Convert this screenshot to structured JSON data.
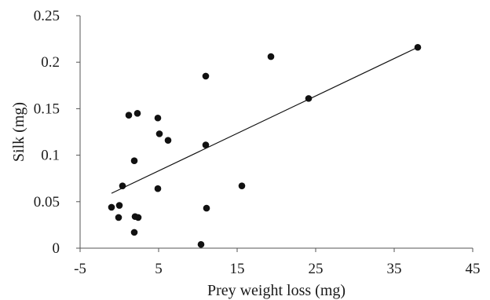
{
  "chart_data": {
    "type": "scatter",
    "title": "",
    "xlabel": "Prey weight loss (mg)",
    "ylabel": "Silk (mg)",
    "xlim": [
      -5,
      45
    ],
    "ylim": [
      0,
      0.25
    ],
    "x_ticks": [
      -5,
      5,
      15,
      25,
      35,
      45
    ],
    "x_tick_labels": [
      "-5",
      "5",
      "15",
      "25",
      "35",
      "45"
    ],
    "y_ticks": [
      0,
      0.05,
      0.1,
      0.15,
      0.2,
      0.25
    ],
    "y_tick_labels": [
      "0",
      "0.05",
      "0.1",
      "0.15",
      "0.2",
      "0.25"
    ],
    "grid": false,
    "legend": "none",
    "series": [
      {
        "points": [
          {
            "x": -1.0,
            "y": 0.044
          },
          {
            "x": 0.0,
            "y": 0.046
          },
          {
            "x": -0.1,
            "y": 0.033
          },
          {
            "x": 0.4,
            "y": 0.067
          },
          {
            "x": 1.2,
            "y": 0.143
          },
          {
            "x": 1.9,
            "y": 0.094
          },
          {
            "x": 2.0,
            "y": 0.034
          },
          {
            "x": 2.4,
            "y": 0.033
          },
          {
            "x": 1.9,
            "y": 0.017
          },
          {
            "x": 2.3,
            "y": 0.145
          },
          {
            "x": 4.9,
            "y": 0.14
          },
          {
            "x": 5.1,
            "y": 0.123
          },
          {
            "x": 4.9,
            "y": 0.064
          },
          {
            "x": 6.2,
            "y": 0.116
          },
          {
            "x": 10.4,
            "y": 0.004
          },
          {
            "x": 11.0,
            "y": 0.185
          },
          {
            "x": 11.0,
            "y": 0.111
          },
          {
            "x": 11.1,
            "y": 0.043
          },
          {
            "x": 15.6,
            "y": 0.067
          },
          {
            "x": 19.3,
            "y": 0.206
          },
          {
            "x": 24.1,
            "y": 0.161
          },
          {
            "x": 38.0,
            "y": 0.216
          }
        ]
      }
    ],
    "trendline": {
      "x": [
        -1.0,
        38.0
      ],
      "y": [
        0.059,
        0.216
      ]
    },
    "colors": {
      "point": "#111111",
      "trendline": "#111111",
      "axis": "#555555"
    }
  }
}
